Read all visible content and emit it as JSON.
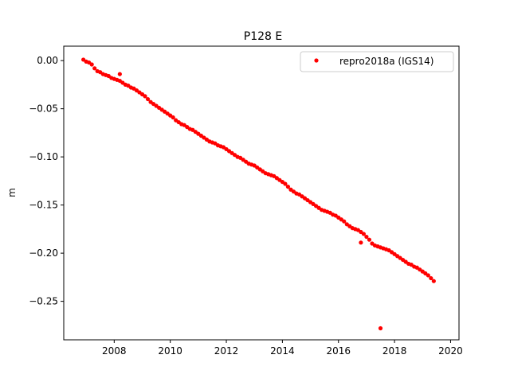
{
  "chart_data": {
    "type": "scatter",
    "title": "P128 E",
    "xlabel": "",
    "ylabel": "m",
    "xlim": [
      2006.2,
      2020.3
    ],
    "ylim": [
      -0.29,
      0.015
    ],
    "xticks": [
      2008,
      2010,
      2012,
      2014,
      2016,
      2018,
      2020
    ],
    "xtick_labels": [
      "2008",
      "2010",
      "2012",
      "2014",
      "2016",
      "2018",
      "2020"
    ],
    "yticks": [
      0.0,
      -0.05,
      -0.1,
      -0.15,
      -0.2,
      -0.25
    ],
    "ytick_labels": [
      "0.00",
      "−0.05",
      "−0.10",
      "−0.15",
      "−0.20",
      "−0.25"
    ],
    "grid": false,
    "legend_position": "top-right",
    "series": [
      {
        "name": "repro2018a (IGS14)",
        "color": "#ff0000",
        "marker": "circle",
        "x": [
          2006.9,
          2007.0,
          2007.1,
          2007.2,
          2007.3,
          2007.4,
          2007.5,
          2007.6,
          2007.7,
          2007.8,
          2007.9,
          2008.0,
          2008.1,
          2008.2,
          2008.3,
          2008.4,
          2008.5,
          2008.6,
          2008.7,
          2008.8,
          2008.9,
          2009.0,
          2009.1,
          2009.2,
          2009.3,
          2009.4,
          2009.5,
          2009.6,
          2009.7,
          2009.8,
          2009.9,
          2010.0,
          2010.1,
          2010.2,
          2010.3,
          2010.4,
          2010.5,
          2010.6,
          2010.7,
          2010.8,
          2010.9,
          2011.0,
          2011.1,
          2011.2,
          2011.3,
          2011.4,
          2011.5,
          2011.6,
          2011.7,
          2011.8,
          2011.9,
          2012.0,
          2012.1,
          2012.2,
          2012.3,
          2012.4,
          2012.5,
          2012.6,
          2012.7,
          2012.8,
          2012.9,
          2013.0,
          2013.1,
          2013.2,
          2013.3,
          2013.4,
          2013.5,
          2013.6,
          2013.7,
          2013.8,
          2013.9,
          2014.0,
          2014.1,
          2014.2,
          2014.3,
          2014.4,
          2014.5,
          2014.6,
          2014.7,
          2014.8,
          2014.9,
          2015.0,
          2015.1,
          2015.2,
          2015.3,
          2015.4,
          2015.5,
          2015.6,
          2015.7,
          2015.8,
          2015.9,
          2016.0,
          2016.1,
          2016.2,
          2016.3,
          2016.4,
          2016.5,
          2016.6,
          2016.7,
          2016.8,
          2016.9,
          2017.0,
          2017.1,
          2017.2,
          2017.3,
          2017.4,
          2017.5,
          2017.6,
          2017.7,
          2017.8,
          2017.9,
          2018.0,
          2018.1,
          2018.2,
          2018.3,
          2018.4,
          2018.5,
          2018.6,
          2018.7,
          2018.8,
          2018.9,
          2019.0,
          2019.1,
          2019.2,
          2019.3,
          2019.4,
          2008.2,
          2016.8,
          2017.5
        ],
        "y": [
          0.001,
          -0.001,
          -0.002,
          -0.004,
          -0.008,
          -0.011,
          -0.012,
          -0.014,
          -0.015,
          -0.016,
          -0.018,
          -0.019,
          -0.02,
          -0.021,
          -0.023,
          -0.025,
          -0.026,
          -0.028,
          -0.029,
          -0.031,
          -0.033,
          -0.035,
          -0.037,
          -0.04,
          -0.043,
          -0.045,
          -0.047,
          -0.049,
          -0.051,
          -0.053,
          -0.055,
          -0.057,
          -0.059,
          -0.062,
          -0.064,
          -0.066,
          -0.067,
          -0.069,
          -0.071,
          -0.072,
          -0.074,
          -0.076,
          -0.078,
          -0.08,
          -0.082,
          -0.084,
          -0.085,
          -0.086,
          -0.088,
          -0.089,
          -0.09,
          -0.092,
          -0.094,
          -0.096,
          -0.098,
          -0.1,
          -0.101,
          -0.103,
          -0.105,
          -0.107,
          -0.108,
          -0.109,
          -0.111,
          -0.113,
          -0.115,
          -0.117,
          -0.118,
          -0.119,
          -0.12,
          -0.122,
          -0.124,
          -0.126,
          -0.128,
          -0.131,
          -0.134,
          -0.136,
          -0.138,
          -0.139,
          -0.141,
          -0.143,
          -0.145,
          -0.147,
          -0.149,
          -0.151,
          -0.153,
          -0.155,
          -0.156,
          -0.157,
          -0.158,
          -0.16,
          -0.161,
          -0.163,
          -0.165,
          -0.167,
          -0.17,
          -0.172,
          -0.174,
          -0.175,
          -0.176,
          -0.178,
          -0.18,
          -0.183,
          -0.186,
          -0.19,
          -0.192,
          -0.193,
          -0.194,
          -0.195,
          -0.196,
          -0.197,
          -0.199,
          -0.201,
          -0.203,
          -0.205,
          -0.207,
          -0.209,
          -0.211,
          -0.212,
          -0.214,
          -0.215,
          -0.217,
          -0.219,
          -0.221,
          -0.223,
          -0.226,
          -0.229,
          -0.014,
          -0.189,
          -0.278
        ]
      }
    ]
  }
}
